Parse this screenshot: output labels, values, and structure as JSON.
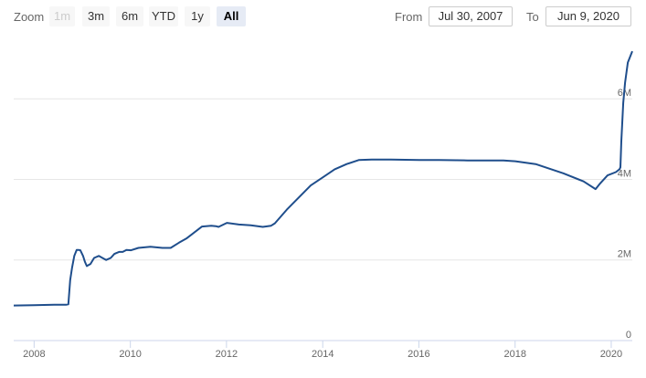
{
  "range_selector": {
    "zoom_label": "Zoom",
    "buttons": [
      {
        "label": "1m",
        "state": "disabled"
      },
      {
        "label": "3m",
        "state": "normal"
      },
      {
        "label": "6m",
        "state": "normal"
      },
      {
        "label": "YTD",
        "state": "normal"
      },
      {
        "label": "1y",
        "state": "normal"
      },
      {
        "label": "All",
        "state": "active"
      }
    ],
    "from_label": "From",
    "from_value": "Jul 30, 2007",
    "to_label": "To",
    "to_value": "Jun 9, 2020"
  },
  "chart_data": {
    "type": "line",
    "title": "",
    "xlabel": "",
    "ylabel": "",
    "x_ticks": [
      "2008",
      "2010",
      "2012",
      "2014",
      "2016",
      "2018",
      "2020"
    ],
    "y_ticks": [
      {
        "value": 0,
        "label": "0"
      },
      {
        "value": 2000000,
        "label": "2M"
      },
      {
        "value": 4000000,
        "label": "4M"
      },
      {
        "value": 6000000,
        "label": "6M"
      }
    ],
    "xlim": [
      "2007-07-30",
      "2020-06-09"
    ],
    "ylim": [
      0,
      7500000
    ],
    "grid": "horizontal",
    "line_color": "#1f4e8c",
    "series": [
      {
        "x": [
          "2007-07-30",
          "2008-01-01",
          "2008-06-01",
          "2008-09-03",
          "2008-09-17",
          "2008-10-01",
          "2008-10-15",
          "2008-11-01",
          "2008-11-19",
          "2008-12-03",
          "2008-12-17",
          "2009-01-07",
          "2009-01-21",
          "2009-02-04",
          "2009-03-04",
          "2009-04-01",
          "2009-05-06",
          "2009-06-03",
          "2009-07-01",
          "2009-08-05",
          "2009-09-02",
          "2009-10-07",
          "2009-11-04",
          "2009-12-02",
          "2010-01-06",
          "2010-03-03",
          "2010-06-02",
          "2010-09-01",
          "2010-11-03",
          "2011-01-05",
          "2011-03-02",
          "2011-06-29",
          "2011-09-07",
          "2011-10-12",
          "2011-11-02",
          "2012-01-04",
          "2012-04-04",
          "2012-07-04",
          "2012-10-03",
          "2012-12-05",
          "2013-01-02",
          "2013-04-03",
          "2013-07-03",
          "2013-10-02",
          "2014-01-01",
          "2014-04-02",
          "2014-07-02",
          "2014-10-01",
          "2015-01-07",
          "2015-06-03",
          "2016-01-06",
          "2016-06-01",
          "2017-01-04",
          "2017-06-07",
          "2017-10-04",
          "2018-01-03",
          "2018-06-06",
          "2019-01-02",
          "2019-06-05",
          "2019-09-04",
          "2019-10-09",
          "2019-12-04",
          "2020-02-05",
          "2020-03-04",
          "2020-03-11",
          "2020-03-18",
          "2020-03-25",
          "2020-04-01",
          "2020-04-15",
          "2020-05-06",
          "2020-06-09"
        ],
        "values": [
          870000,
          880000,
          890000,
          890000,
          900000,
          1500000,
          1800000,
          2100000,
          2250000,
          2250000,
          2240000,
          2100000,
          1950000,
          1850000,
          1900000,
          2050000,
          2100000,
          2050000,
          2000000,
          2050000,
          2150000,
          2200000,
          2200000,
          2250000,
          2240000,
          2300000,
          2330000,
          2300000,
          2300000,
          2430000,
          2530000,
          2830000,
          2850000,
          2840000,
          2820000,
          2920000,
          2880000,
          2860000,
          2820000,
          2850000,
          2910000,
          3250000,
          3550000,
          3850000,
          4050000,
          4250000,
          4380000,
          4480000,
          4490000,
          4490000,
          4480000,
          4480000,
          4470000,
          4470000,
          4470000,
          4450000,
          4380000,
          4150000,
          3950000,
          3760000,
          3900000,
          4100000,
          4180000,
          4250000,
          4300000,
          4950000,
          5400000,
          5900000,
          6400000,
          6900000,
          7180000
        ]
      }
    ]
  }
}
